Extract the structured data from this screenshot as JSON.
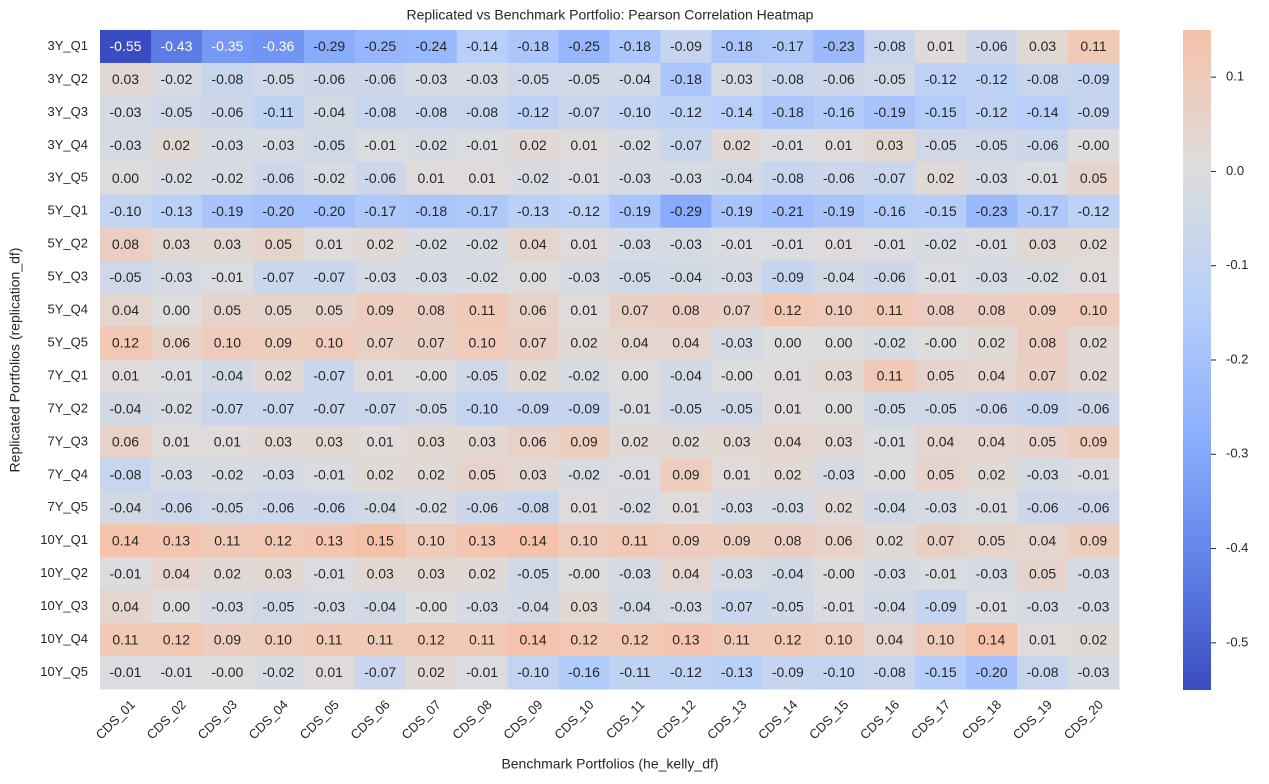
{
  "chart_data": {
    "type": "heatmap",
    "title": "Replicated vs Benchmark Portfolio: Pearson Correlation Heatmap",
    "x_label": "Benchmark Portfolios (he_kelly_df)",
    "y_label": "Replicated Portfolios (replication_df)",
    "x_categories": [
      "CDS_01",
      "CDS_02",
      "CDS_03",
      "CDS_04",
      "CDS_05",
      "CDS_06",
      "CDS_07",
      "CDS_08",
      "CDS_09",
      "CDS_10",
      "CDS_11",
      "CDS_12",
      "CDS_13",
      "CDS_14",
      "CDS_15",
      "CDS_16",
      "CDS_17",
      "CDS_18",
      "CDS_19",
      "CDS_20"
    ],
    "y_categories": [
      "3Y_Q1",
      "3Y_Q2",
      "3Y_Q3",
      "3Y_Q4",
      "3Y_Q5",
      "5Y_Q1",
      "5Y_Q2",
      "5Y_Q3",
      "5Y_Q4",
      "5Y_Q5",
      "7Y_Q1",
      "7Y_Q2",
      "7Y_Q3",
      "7Y_Q4",
      "7Y_Q5",
      "10Y_Q1",
      "10Y_Q2",
      "10Y_Q3",
      "10Y_Q4",
      "10Y_Q5"
    ],
    "values": [
      [
        -0.55,
        -0.43,
        -0.35,
        -0.36,
        -0.29,
        -0.25,
        -0.24,
        -0.14,
        -0.18,
        -0.25,
        -0.18,
        -0.09,
        -0.18,
        -0.17,
        -0.23,
        -0.08,
        0.01,
        -0.06,
        0.03,
        0.11
      ],
      [
        0.03,
        -0.02,
        -0.08,
        -0.05,
        -0.06,
        -0.06,
        -0.03,
        -0.03,
        -0.05,
        -0.05,
        -0.04,
        -0.18,
        -0.03,
        -0.08,
        -0.06,
        -0.05,
        -0.12,
        -0.12,
        -0.08,
        -0.09
      ],
      [
        -0.03,
        -0.05,
        -0.06,
        -0.11,
        -0.04,
        -0.08,
        -0.08,
        -0.08,
        -0.12,
        -0.07,
        -0.1,
        -0.12,
        -0.14,
        -0.18,
        -0.16,
        -0.19,
        -0.15,
        -0.12,
        -0.14,
        -0.09
      ],
      [
        -0.03,
        0.02,
        -0.03,
        -0.03,
        -0.05,
        -0.01,
        -0.02,
        -0.01,
        0.02,
        0.01,
        -0.02,
        -0.07,
        0.02,
        -0.01,
        0.01,
        0.03,
        -0.05,
        -0.05,
        -0.06,
        -0.0
      ],
      [
        0.0,
        -0.02,
        -0.02,
        -0.06,
        -0.02,
        -0.06,
        0.01,
        0.01,
        -0.02,
        -0.01,
        -0.03,
        -0.03,
        -0.04,
        -0.08,
        -0.06,
        -0.07,
        0.02,
        -0.03,
        -0.01,
        0.05
      ],
      [
        -0.1,
        -0.13,
        -0.19,
        -0.2,
        -0.2,
        -0.17,
        -0.18,
        -0.17,
        -0.13,
        -0.12,
        -0.19,
        -0.29,
        -0.19,
        -0.21,
        -0.19,
        -0.16,
        -0.15,
        -0.23,
        -0.17,
        -0.12
      ],
      [
        0.08,
        0.03,
        0.03,
        0.05,
        0.01,
        0.02,
        -0.02,
        -0.02,
        0.04,
        0.01,
        -0.03,
        -0.03,
        -0.01,
        -0.01,
        0.01,
        -0.01,
        -0.02,
        -0.01,
        0.03,
        0.02
      ],
      [
        -0.05,
        -0.03,
        -0.01,
        -0.07,
        -0.07,
        -0.03,
        -0.03,
        -0.02,
        0.0,
        -0.03,
        -0.05,
        -0.04,
        -0.03,
        -0.09,
        -0.04,
        -0.06,
        -0.01,
        -0.03,
        -0.02,
        0.01
      ],
      [
        0.04,
        0.0,
        0.05,
        0.05,
        0.05,
        0.09,
        0.08,
        0.11,
        0.06,
        0.01,
        0.07,
        0.08,
        0.07,
        0.12,
        0.1,
        0.11,
        0.08,
        0.08,
        0.09,
        0.1
      ],
      [
        0.12,
        0.06,
        0.1,
        0.09,
        0.1,
        0.07,
        0.07,
        0.1,
        0.07,
        0.02,
        0.04,
        0.04,
        -0.03,
        0.0,
        0.0,
        -0.02,
        -0.0,
        0.02,
        0.08,
        0.02
      ],
      [
        0.01,
        -0.01,
        -0.04,
        0.02,
        -0.07,
        0.01,
        -0.0,
        -0.05,
        0.02,
        -0.02,
        0.0,
        -0.04,
        -0.0,
        0.01,
        0.03,
        0.11,
        0.05,
        0.04,
        0.07,
        0.02
      ],
      [
        -0.04,
        -0.02,
        -0.07,
        -0.07,
        -0.07,
        -0.07,
        -0.05,
        -0.1,
        -0.09,
        -0.09,
        -0.01,
        -0.05,
        -0.05,
        0.01,
        0.0,
        -0.05,
        -0.05,
        -0.06,
        -0.09,
        -0.06
      ],
      [
        0.06,
        0.01,
        0.01,
        0.03,
        0.03,
        0.01,
        0.03,
        0.03,
        0.06,
        0.09,
        0.02,
        0.02,
        0.03,
        0.04,
        0.03,
        -0.01,
        0.04,
        0.04,
        0.05,
        0.09
      ],
      [
        -0.08,
        -0.03,
        -0.02,
        -0.03,
        -0.01,
        0.02,
        0.02,
        0.05,
        0.03,
        -0.02,
        -0.01,
        0.09,
        0.01,
        0.02,
        -0.03,
        -0.0,
        0.05,
        0.02,
        -0.03,
        -0.01
      ],
      [
        -0.04,
        -0.06,
        -0.05,
        -0.06,
        -0.06,
        -0.04,
        -0.02,
        -0.06,
        -0.08,
        0.01,
        -0.02,
        0.01,
        -0.03,
        -0.03,
        0.02,
        -0.04,
        -0.03,
        -0.01,
        -0.06,
        -0.06
      ],
      [
        0.14,
        0.13,
        0.11,
        0.12,
        0.13,
        0.15,
        0.1,
        0.13,
        0.14,
        0.1,
        0.11,
        0.09,
        0.09,
        0.08,
        0.06,
        0.02,
        0.07,
        0.05,
        0.04,
        0.09
      ],
      [
        -0.01,
        0.04,
        0.02,
        0.03,
        -0.01,
        0.03,
        0.03,
        0.02,
        -0.05,
        -0.0,
        -0.03,
        0.04,
        -0.03,
        -0.04,
        -0.0,
        -0.03,
        -0.01,
        -0.03,
        0.05,
        -0.03
      ],
      [
        0.04,
        0.0,
        -0.03,
        -0.05,
        -0.03,
        -0.04,
        -0.0,
        -0.03,
        -0.04,
        0.03,
        -0.04,
        -0.03,
        -0.07,
        -0.05,
        -0.01,
        -0.04,
        -0.09,
        -0.01,
        -0.03,
        -0.03
      ],
      [
        0.11,
        0.12,
        0.09,
        0.1,
        0.11,
        0.11,
        0.12,
        0.11,
        0.14,
        0.12,
        0.12,
        0.13,
        0.11,
        0.12,
        0.1,
        0.04,
        0.1,
        0.14,
        0.01,
        0.02
      ],
      [
        -0.01,
        -0.01,
        -0.0,
        -0.02,
        0.01,
        -0.07,
        0.02,
        -0.01,
        -0.1,
        -0.16,
        -0.11,
        -0.12,
        -0.13,
        -0.09,
        -0.1,
        -0.08,
        -0.15,
        -0.2,
        -0.08,
        -0.03
      ]
    ],
    "value_labels": [
      [
        "-0.55",
        "-0.43",
        "-0.35",
        "-0.36",
        "-0.29",
        "-0.25",
        "-0.24",
        "-0.14",
        "-0.18",
        "-0.25",
        "-0.18",
        "-0.09",
        "-0.18",
        "-0.17",
        "-0.23",
        "-0.08",
        "0.01",
        "-0.06",
        "0.03",
        "0.11"
      ],
      [
        "0.03",
        "-0.02",
        "-0.08",
        "-0.05",
        "-0.06",
        "-0.06",
        "-0.03",
        "-0.03",
        "-0.05",
        "-0.05",
        "-0.04",
        "-0.18",
        "-0.03",
        "-0.08",
        "-0.06",
        "-0.05",
        "-0.12",
        "-0.12",
        "-0.08",
        "-0.09"
      ],
      [
        "-0.03",
        "-0.05",
        "-0.06",
        "-0.11",
        "-0.04",
        "-0.08",
        "-0.08",
        "-0.08",
        "-0.12",
        "-0.07",
        "-0.10",
        "-0.12",
        "-0.14",
        "-0.18",
        "-0.16",
        "-0.19",
        "-0.15",
        "-0.12",
        "-0.14",
        "-0.09"
      ],
      [
        "-0.03",
        "0.02",
        "-0.03",
        "-0.03",
        "-0.05",
        "-0.01",
        "-0.02",
        "-0.01",
        "0.02",
        "0.01",
        "-0.02",
        "-0.07",
        "0.02",
        "-0.01",
        "0.01",
        "0.03",
        "-0.05",
        "-0.05",
        "-0.06",
        "-0.00"
      ],
      [
        "0.00",
        "-0.02",
        "-0.02",
        "-0.06",
        "-0.02",
        "-0.06",
        "0.01",
        "0.01",
        "-0.02",
        "-0.01",
        "-0.03",
        "-0.03",
        "-0.04",
        "-0.08",
        "-0.06",
        "-0.07",
        "0.02",
        "-0.03",
        "-0.01",
        "0.05"
      ],
      [
        "-0.10",
        "-0.13",
        "-0.19",
        "-0.20",
        "-0.20",
        "-0.17",
        "-0.18",
        "-0.17",
        "-0.13",
        "-0.12",
        "-0.19",
        "-0.29",
        "-0.19",
        "-0.21",
        "-0.19",
        "-0.16",
        "-0.15",
        "-0.23",
        "-0.17",
        "-0.12"
      ],
      [
        "0.08",
        "0.03",
        "0.03",
        "0.05",
        "0.01",
        "0.02",
        "-0.02",
        "-0.02",
        "0.04",
        "0.01",
        "-0.03",
        "-0.03",
        "-0.01",
        "-0.01",
        "0.01",
        "-0.01",
        "-0.02",
        "-0.01",
        "0.03",
        "0.02"
      ],
      [
        "-0.05",
        "-0.03",
        "-0.01",
        "-0.07",
        "-0.07",
        "-0.03",
        "-0.03",
        "-0.02",
        "0.00",
        "-0.03",
        "-0.05",
        "-0.04",
        "-0.03",
        "-0.09",
        "-0.04",
        "-0.06",
        "-0.01",
        "-0.03",
        "-0.02",
        "0.01"
      ],
      [
        "0.04",
        "0.00",
        "0.05",
        "0.05",
        "0.05",
        "0.09",
        "0.08",
        "0.11",
        "0.06",
        "0.01",
        "0.07",
        "0.08",
        "0.07",
        "0.12",
        "0.10",
        "0.11",
        "0.08",
        "0.08",
        "0.09",
        "0.10"
      ],
      [
        "0.12",
        "0.06",
        "0.10",
        "0.09",
        "0.10",
        "0.07",
        "0.07",
        "0.10",
        "0.07",
        "0.02",
        "0.04",
        "0.04",
        "-0.03",
        "0.00",
        "0.00",
        "-0.02",
        "-0.00",
        "0.02",
        "0.08",
        "0.02"
      ],
      [
        "0.01",
        "-0.01",
        "-0.04",
        "0.02",
        "-0.07",
        "0.01",
        "-0.00",
        "-0.05",
        "0.02",
        "-0.02",
        "0.00",
        "-0.04",
        "-0.00",
        "0.01",
        "0.03",
        "0.11",
        "0.05",
        "0.04",
        "0.07",
        "0.02"
      ],
      [
        "-0.04",
        "-0.02",
        "-0.07",
        "-0.07",
        "-0.07",
        "-0.07",
        "-0.05",
        "-0.10",
        "-0.09",
        "-0.09",
        "-0.01",
        "-0.05",
        "-0.05",
        "0.01",
        "0.00",
        "-0.05",
        "-0.05",
        "-0.06",
        "-0.09",
        "-0.06"
      ],
      [
        "0.06",
        "0.01",
        "0.01",
        "0.03",
        "0.03",
        "0.01",
        "0.03",
        "0.03",
        "0.06",
        "0.09",
        "0.02",
        "0.02",
        "0.03",
        "0.04",
        "0.03",
        "-0.01",
        "0.04",
        "0.04",
        "0.05",
        "0.09"
      ],
      [
        "-0.08",
        "-0.03",
        "-0.02",
        "-0.03",
        "-0.01",
        "0.02",
        "0.02",
        "0.05",
        "0.03",
        "-0.02",
        "-0.01",
        "0.09",
        "0.01",
        "0.02",
        "-0.03",
        "-0.00",
        "0.05",
        "0.02",
        "-0.03",
        "-0.01"
      ],
      [
        "-0.04",
        "-0.06",
        "-0.05",
        "-0.06",
        "-0.06",
        "-0.04",
        "-0.02",
        "-0.06",
        "-0.08",
        "0.01",
        "-0.02",
        "0.01",
        "-0.03",
        "-0.03",
        "0.02",
        "-0.04",
        "-0.03",
        "-0.01",
        "-0.06",
        "-0.06"
      ],
      [
        "0.14",
        "0.13",
        "0.11",
        "0.12",
        "0.13",
        "0.15",
        "0.10",
        "0.13",
        "0.14",
        "0.10",
        "0.11",
        "0.09",
        "0.09",
        "0.08",
        "0.06",
        "0.02",
        "0.07",
        "0.05",
        "0.04",
        "0.09"
      ],
      [
        "-0.01",
        "0.04",
        "0.02",
        "0.03",
        "-0.01",
        "0.03",
        "0.03",
        "0.02",
        "-0.05",
        "-0.00",
        "-0.03",
        "0.04",
        "-0.03",
        "-0.04",
        "-0.00",
        "-0.03",
        "-0.01",
        "-0.03",
        "0.05",
        "-0.03"
      ],
      [
        "0.04",
        "0.00",
        "-0.03",
        "-0.05",
        "-0.03",
        "-0.04",
        "-0.00",
        "-0.03",
        "-0.04",
        "0.03",
        "-0.04",
        "-0.03",
        "-0.07",
        "-0.05",
        "-0.01",
        "-0.04",
        "-0.09",
        "-0.01",
        "-0.03",
        "-0.03"
      ],
      [
        "0.11",
        "0.12",
        "0.09",
        "0.10",
        "0.11",
        "0.11",
        "0.12",
        "0.11",
        "0.14",
        "0.12",
        "0.12",
        "0.13",
        "0.11",
        "0.12",
        "0.10",
        "0.04",
        "0.10",
        "0.14",
        "0.01",
        "0.02"
      ],
      [
        "-0.01",
        "-0.01",
        "-0.00",
        "-0.02",
        "0.01",
        "-0.07",
        "0.02",
        "-0.01",
        "-0.10",
        "-0.16",
        "-0.11",
        "-0.12",
        "-0.13",
        "-0.09",
        "-0.10",
        "-0.08",
        "-0.15",
        "-0.20",
        "-0.08",
        "-0.03"
      ]
    ],
    "colormap": "coolwarm",
    "zlim": [
      -0.55,
      0.15
    ],
    "center": 0,
    "colorbar_ticks": [
      0.1,
      {
        "value": 0,
        "label": "0.0"
      },
      -0.1,
      -0.2,
      -0.3,
      -0.4,
      -0.5
    ]
  }
}
